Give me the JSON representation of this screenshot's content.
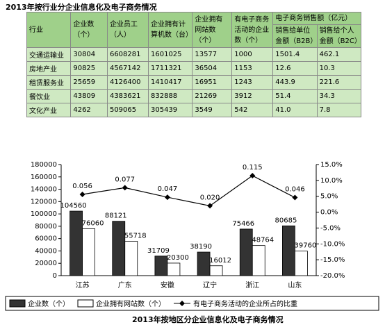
{
  "table": {
    "title": "2013年按行业分企业信息化及电子商务情况",
    "columns": [
      "行业",
      "企业数（个）",
      "企业员工（人）",
      "企业拥有计算机数（台）",
      "企业拥有网站数（个）",
      "有电子商务活动的企业数（个）",
      "电子商务销售额（亿元）"
    ],
    "subcolumns": [
      "销售给单位金额（B2B）",
      "销售给个人金额（B2C）"
    ],
    "rows": [
      [
        "交通运输业",
        "30804",
        "6608281",
        "1601025",
        "13577",
        "1000",
        "1501.4",
        "462.1"
      ],
      [
        "房地产业",
        "90825",
        "4567142",
        "1711321",
        "36504",
        "1153",
        "12.6",
        "10.3"
      ],
      [
        "租赁服务业",
        "25659",
        "4126400",
        "1410417",
        "16951",
        "1243",
        "443.9",
        "221.6"
      ],
      [
        "餐饮业",
        "43809",
        "4383621",
        "832888",
        "21269",
        "3912",
        "51.4",
        "34.3"
      ],
      [
        "文化产业",
        "4262",
        "509065",
        "305439",
        "3549",
        "542",
        "41.0",
        "7.8"
      ]
    ]
  },
  "chart_data": {
    "type": "bar",
    "title": "2013年按地区分企业信息化及电子商务情况",
    "categories": [
      "江苏",
      "广东",
      "安徽",
      "辽宁",
      "浙江",
      "山东"
    ],
    "series": [
      {
        "name": "企业数（个）",
        "color": "#333333",
        "values": [
          104560,
          88121,
          31709,
          38190,
          75466,
          80685
        ]
      },
      {
        "name": "企业拥有网站数（个）",
        "color": "#ffffff",
        "values": [
          76060,
          55718,
          20300,
          16012,
          48764,
          39760
        ]
      },
      {
        "name": "有电子商务活动的企业所占的比重",
        "color": "#000000",
        "axis": "y2",
        "type": "line",
        "values": [
          5.6,
          7.7,
          4.7,
          2.0,
          11.5,
          4.6
        ],
        "value_labels": [
          "0.056",
          "0.077",
          "0.047",
          "0.020",
          "0.115",
          "0.046"
        ]
      }
    ],
    "ylim": [
      0,
      180000
    ],
    "yticks": [
      0,
      20000,
      40000,
      60000,
      80000,
      100000,
      120000,
      140000,
      160000,
      180000
    ],
    "y2lim": [
      -20,
      15
    ],
    "y2ticks": [
      {
        "value": -20,
        "label": "-20.0%"
      },
      {
        "value": -15,
        "label": "-15.0%"
      },
      {
        "value": -10,
        "label": "-10.0%"
      },
      {
        "value": -5,
        "label": "-5.0%"
      },
      {
        "value": 0,
        "label": "0.0%"
      },
      {
        "value": 5,
        "label": "5.0%"
      },
      {
        "value": 10,
        "label": "10.0%"
      },
      {
        "value": 15,
        "label": "15.0%"
      }
    ],
    "grid": false
  }
}
